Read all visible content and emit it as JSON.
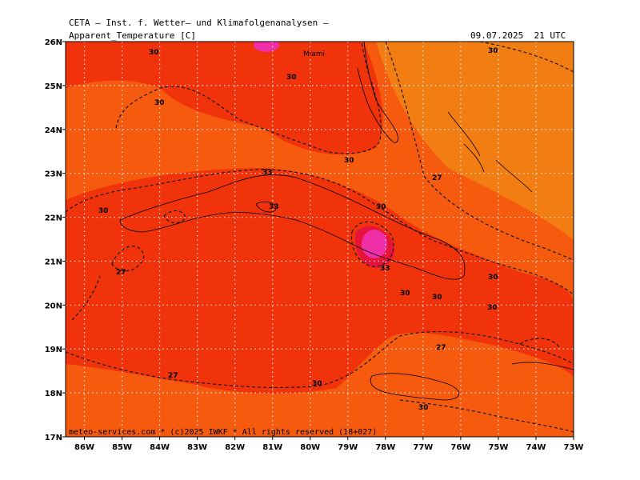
{
  "header": {
    "institute": "CETA — Inst. f. Wetter— und Klimafolgenanalysen —",
    "parameter": "Apparent_Temperature [C]",
    "datetime": "09.07.2025  21 UTC"
  },
  "footer": "meteo-services.com * (c)2025 IWKF * All rights reserved (18+027)",
  "map": {
    "lon_range": [
      -86.5,
      -73
    ],
    "lat_range": [
      17,
      26
    ],
    "lon_ticks": [
      "86W",
      "85W",
      "84W",
      "83W",
      "82W",
      "81W",
      "80W",
      "79W",
      "78W",
      "77W",
      "76W",
      "75W",
      "74W",
      "73W"
    ],
    "lat_ticks": [
      "26N",
      "25N",
      "24N",
      "23N",
      "22N",
      "21N",
      "20N",
      "19N",
      "18N"
    ],
    "lat_tick_17": "17N",
    "city_label": "Miami",
    "contour_labels": [
      "30",
      "30",
      "30",
      "33",
      "30",
      "33",
      "30",
      "30",
      "27",
      "30",
      "33",
      "30",
      "30",
      "30",
      "27",
      "30",
      "27",
      "27",
      "30",
      "30"
    ],
    "colors": {
      "c27": "#f27d12",
      "c28": "#f55a0e",
      "c30": "#f1330c",
      "c33": "#e8133a",
      "c36": "#f02ea7",
      "grid": "#e8e8e8",
      "contour": "#1a1a1a"
    }
  }
}
